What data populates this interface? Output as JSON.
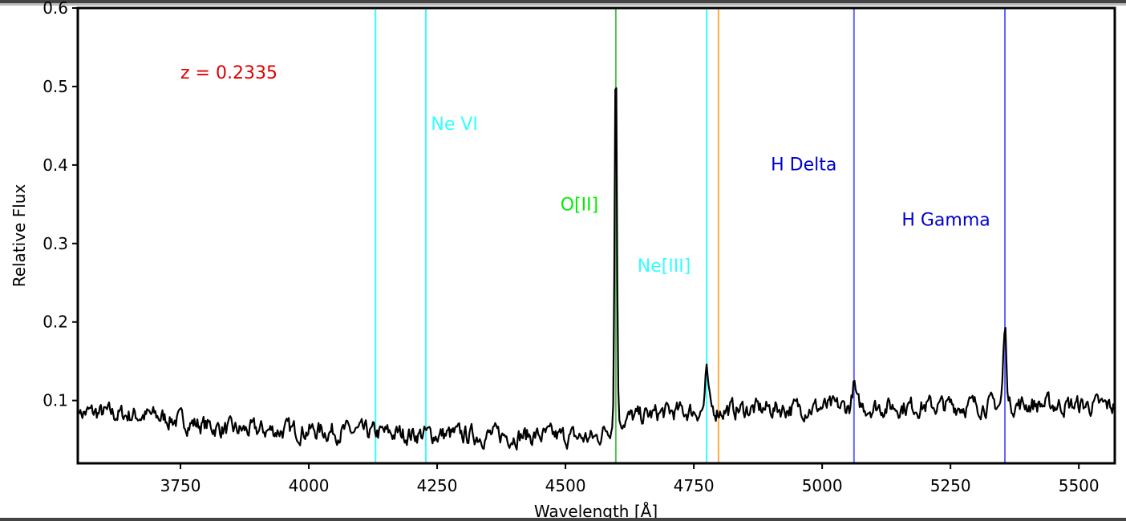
{
  "chart_data": {
    "type": "line",
    "title": "",
    "xlabel": "Wavelength [Å]",
    "ylabel": "Relative Flux",
    "xlim": [
      3550,
      5570
    ],
    "ylim": [
      0.02,
      0.6
    ],
    "xticks": [
      3750,
      4000,
      4250,
      4500,
      4750,
      5000,
      5250,
      5500
    ],
    "yticks": [
      0.1,
      0.2,
      0.3,
      0.4,
      0.5,
      0.6
    ],
    "grid": false,
    "redshift_label": {
      "text": "z = 0.2335",
      "color": "#e00000",
      "x": 3750,
      "y": 0.51
    },
    "lines": [
      {
        "name": "",
        "x": 4130,
        "color": "#33ffff"
      },
      {
        "name": "Ne VI",
        "x": 4228,
        "color": "#33ffff",
        "label_x": 4238,
        "label_y": 0.445
      },
      {
        "name": "O[II]",
        "x": 4598,
        "color": "#55bb55",
        "label_color": "#00ee00",
        "label_x": 4490,
        "label_y": 0.342,
        "emission_peak": 0.547
      },
      {
        "name": "Ne[III]",
        "x": 4775,
        "color": "#33ffff",
        "label_x": 4640,
        "label_y": 0.264,
        "emission_peak": 0.132
      },
      {
        "name": "",
        "x": 4798,
        "color": "#ffb040"
      },
      {
        "name": "H Delta",
        "x": 5062,
        "color": "#6666ff",
        "label_color": "#0000cc",
        "label_x": 4900,
        "label_y": 0.393,
        "emission_peak": 0.12
      },
      {
        "name": "H Gamma",
        "x": 5356,
        "color": "#6666ff",
        "label_color": "#0000cc",
        "label_x": 5155,
        "label_y": 0.323,
        "emission_peak": 0.19
      }
    ],
    "series": [
      {
        "color": "#000000",
        "continuum": [
          [
            3555,
            0.085
          ],
          [
            3700,
            0.08
          ],
          [
            3850,
            0.062
          ],
          [
            4000,
            0.062
          ],
          [
            4150,
            0.058
          ],
          [
            4300,
            0.056
          ],
          [
            4450,
            0.055
          ],
          [
            4560,
            0.052
          ],
          [
            4600,
            0.075
          ],
          [
            4700,
            0.085
          ],
          [
            4800,
            0.088
          ],
          [
            5000,
            0.091
          ],
          [
            5200,
            0.093
          ],
          [
            5400,
            0.095
          ],
          [
            5570,
            0.093
          ]
        ],
        "noise_amplitude": 0.014
      }
    ]
  }
}
